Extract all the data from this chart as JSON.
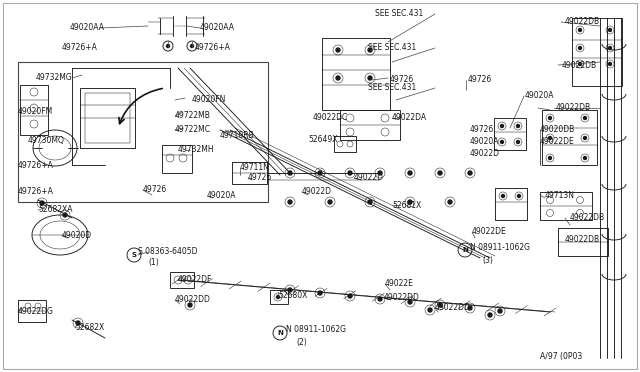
{
  "fig_width": 6.4,
  "fig_height": 3.72,
  "dpi": 100,
  "bg_color": "#ffffff",
  "line_color": "#1a1a1a",
  "label_fontsize": 5.5,
  "label_color": "#1a1a1a",
  "thin": 0.35,
  "medium": 0.65,
  "thick": 1.0,
  "labels": [
    [
      "49020AA",
      105,
      28,
      "right"
    ],
    [
      "49020AA",
      200,
      28,
      "left"
    ],
    [
      "SEE SEC.431",
      375,
      14,
      "left"
    ],
    [
      "49022DB",
      565,
      22,
      "left"
    ],
    [
      "49726+A",
      98,
      47,
      "right"
    ],
    [
      "49726+A",
      195,
      47,
      "left"
    ],
    [
      "49732MG",
      72,
      78,
      "right"
    ],
    [
      "SEE SEC.431",
      368,
      48,
      "left"
    ],
    [
      "49726",
      390,
      80,
      "left"
    ],
    [
      "49726",
      468,
      80,
      "left"
    ],
    [
      "49022DB",
      562,
      65,
      "left"
    ],
    [
      "49020FN",
      192,
      100,
      "left"
    ],
    [
      "49722MB",
      175,
      116,
      "left"
    ],
    [
      "49722MC",
      175,
      130,
      "left"
    ],
    [
      "SEE SEC.431",
      368,
      88,
      "left"
    ],
    [
      "49022DC",
      348,
      118,
      "right"
    ],
    [
      "49022DA",
      392,
      118,
      "left"
    ],
    [
      "49020A",
      525,
      96,
      "left"
    ],
    [
      "49022DB",
      556,
      108,
      "left"
    ],
    [
      "49020FM",
      18,
      112,
      "left"
    ],
    [
      "52649X",
      338,
      140,
      "right"
    ],
    [
      "49730MQ",
      28,
      140,
      "left"
    ],
    [
      "49732MH",
      178,
      150,
      "left"
    ],
    [
      "49710RB",
      220,
      136,
      "left"
    ],
    [
      "49726",
      470,
      130,
      "left"
    ],
    [
      "49020A",
      470,
      142,
      "left"
    ],
    [
      "49022D",
      470,
      154,
      "left"
    ],
    [
      "49020DB",
      540,
      130,
      "left"
    ],
    [
      "49022DE",
      540,
      142,
      "left"
    ],
    [
      "49726+A",
      18,
      165,
      "left"
    ],
    [
      "49726+A",
      18,
      192,
      "left"
    ],
    [
      "49711N",
      240,
      168,
      "left"
    ],
    [
      "49726",
      248,
      178,
      "left"
    ],
    [
      "49726",
      143,
      190,
      "left"
    ],
    [
      "49020A",
      207,
      196,
      "left"
    ],
    [
      "49022D",
      354,
      178,
      "left"
    ],
    [
      "49022D",
      302,
      192,
      "left"
    ],
    [
      "52681X",
      392,
      205,
      "left"
    ],
    [
      "49713N",
      545,
      195,
      "left"
    ],
    [
      "49022DB",
      570,
      218,
      "left"
    ],
    [
      "52682XA",
      38,
      210,
      "left"
    ],
    [
      "49020D",
      62,
      235,
      "left"
    ],
    [
      "S 08363-6405D",
      138,
      252,
      "left"
    ],
    [
      "(1)",
      148,
      263,
      "left"
    ],
    [
      "49022DE",
      472,
      232,
      "left"
    ],
    [
      "N 08911-1062G",
      470,
      248,
      "left"
    ],
    [
      "(3)",
      482,
      260,
      "left"
    ],
    [
      "49022DB",
      565,
      240,
      "left"
    ],
    [
      "49022DF",
      178,
      280,
      "left"
    ],
    [
      "49022DD",
      175,
      300,
      "left"
    ],
    [
      "52680X",
      278,
      296,
      "left"
    ],
    [
      "49022E",
      385,
      284,
      "left"
    ],
    [
      "49022DD",
      384,
      298,
      "left"
    ],
    [
      "49022DD",
      435,
      308,
      "left"
    ],
    [
      "N 08911-1062G",
      286,
      330,
      "left"
    ],
    [
      "(2)",
      296,
      342,
      "left"
    ],
    [
      "49022DG",
      18,
      312,
      "left"
    ],
    [
      "52682X",
      75,
      328,
      "left"
    ],
    [
      "A/97 (0P03",
      540,
      356,
      "left"
    ]
  ]
}
